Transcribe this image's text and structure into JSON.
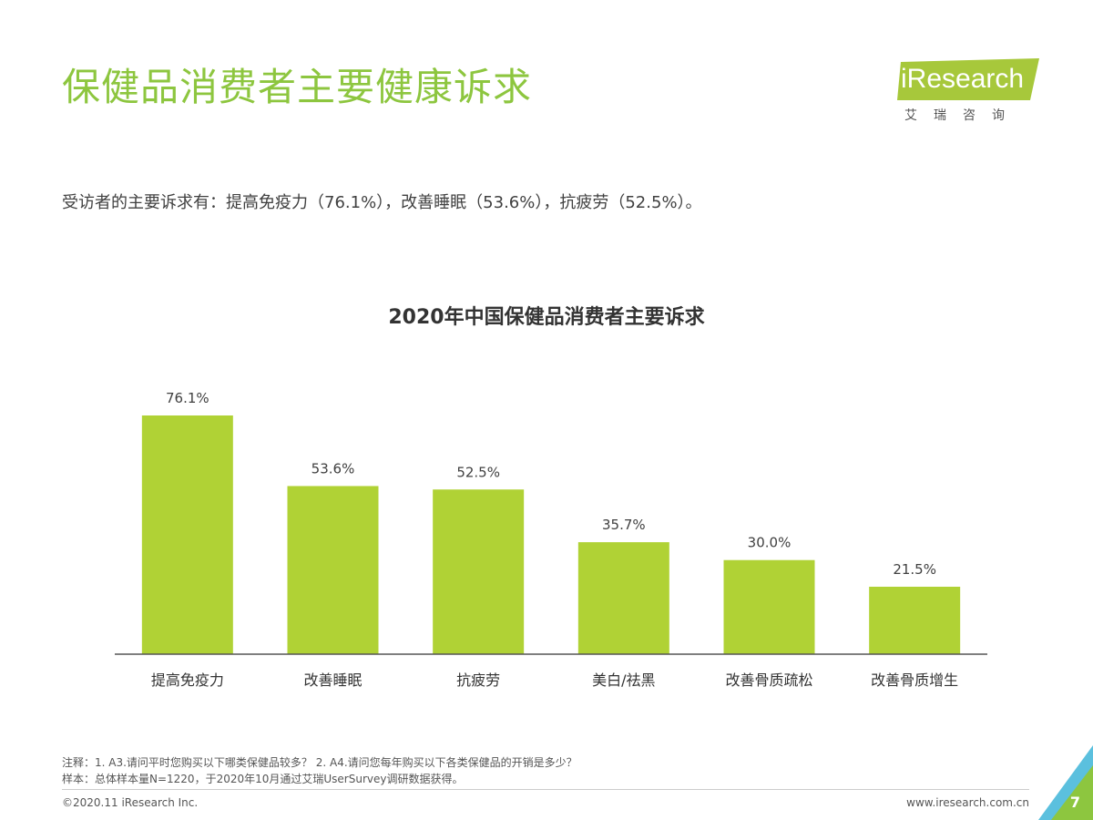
{
  "header": {
    "title": "保健品消费者主要健康诉求",
    "logo_text": "iResearch",
    "logo_sub": "艾瑞咨询"
  },
  "summary": "受访者的主要诉求有：提高免疫力（76.1%），改善睡眠（53.6%），抗疲劳（52.5%）。",
  "chart_data": {
    "type": "bar",
    "title": "2020年中国保健品消费者主要诉求",
    "categories": [
      "提高免疫力",
      "改善睡眠",
      "抗疲劳",
      "美白/祛黑",
      "改善骨质疏松",
      "改善骨质增生"
    ],
    "values": [
      76.1,
      53.6,
      52.5,
      35.7,
      30.0,
      21.5
    ],
    "labels": [
      "76.1%",
      "53.6%",
      "52.5%",
      "35.7%",
      "30.0%",
      "21.5%"
    ],
    "ylim": [
      0,
      76.1
    ],
    "bar_color": "#b0d235",
    "grid": false,
    "legend": false
  },
  "footer": {
    "note1": "注释：1. A3.请问平时您购买以下哪类保健品较多？ 2. A4.请问您每年购买以下各类保健品的开销是多少？",
    "note2": "样本：总体样本量N=1220，于2020年10月通过艾瑞UserSurvey调研数据获得。",
    "copyright": "©2020.11 iResearch Inc.",
    "website": "www.iresearch.com.cn",
    "page_number": "7"
  },
  "colors": {
    "accent": "#8dc63f",
    "bar": "#b0d235",
    "corner_blue": "#5bc0de",
    "corner_green": "#8dc63f"
  }
}
